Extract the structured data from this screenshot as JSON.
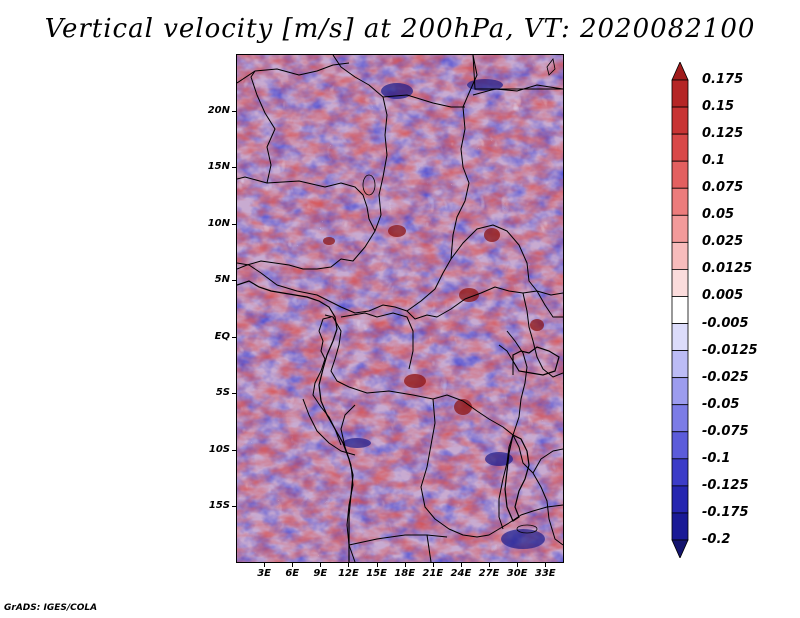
{
  "title": "Vertical velocity [m/s] at 200hPa, VT: 2020082100",
  "credit": "GrADS: IGES/COLA",
  "map": {
    "lon_range": [
      0,
      35
    ],
    "lat_range": [
      -20,
      25
    ],
    "lat_labels": [
      "20N",
      "15N",
      "10N",
      "5N",
      "EQ",
      "5S",
      "10S",
      "15S"
    ],
    "lat_values": [
      20,
      15,
      10,
      5,
      0,
      -5,
      -10,
      -15
    ],
    "lon_labels": [
      "3E",
      "6E",
      "9E",
      "12E",
      "15E",
      "18E",
      "21E",
      "24E",
      "27E",
      "30E",
      "33E"
    ],
    "lon_values": [
      3,
      6,
      9,
      12,
      15,
      18,
      21,
      24,
      27,
      30,
      33
    ]
  },
  "colorbar": {
    "labels": [
      "0.175",
      "0.15",
      "0.125",
      "0.1",
      "0.075",
      "0.05",
      "0.025",
      "0.0125",
      "0.005",
      "-0.005",
      "-0.0125",
      "-0.025",
      "-0.05",
      "-0.075",
      "-0.1",
      "-0.125",
      "-0.175",
      "-0.2"
    ],
    "colors": [
      "#a01c1c",
      "#b52626",
      "#c83434",
      "#d84848",
      "#e36060",
      "#ec7c7c",
      "#f29a9a",
      "#f7bcbc",
      "#fbdcdc",
      "#ffffff",
      "#dcdcfb",
      "#bcbcf5",
      "#9c9cee",
      "#7c7ce6",
      "#5c5cda",
      "#3c3cc8",
      "#2626b0",
      "#1a1a96",
      "#14146e"
    ]
  }
}
